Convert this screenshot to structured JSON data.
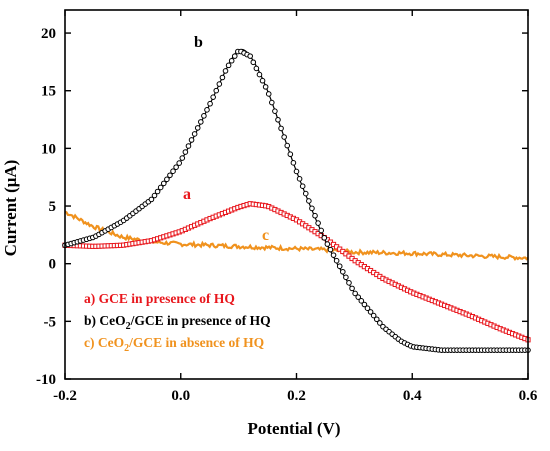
{
  "chart_data": {
    "type": "scatter",
    "xlabel": "Potential (V)",
    "ylabel": "Current (μA)",
    "xlim": [
      -0.2,
      0.6
    ],
    "ylim": [
      -10,
      22
    ],
    "xticks": [
      "-0.2",
      "0.0",
      "0.2",
      "0.4",
      "0.6"
    ],
    "yticks": [
      "-10",
      "-5",
      "0",
      "5",
      "10",
      "15",
      "20"
    ],
    "grid": false,
    "legend_position": "bottom-left",
    "series": [
      {
        "key": "a",
        "label": "a",
        "legend": "a) GCE in presence of HQ",
        "color": "#e8161c",
        "marker": "open-square",
        "x": [
          -0.2,
          -0.15,
          -0.1,
          -0.05,
          0.0,
          0.05,
          0.1,
          0.12,
          0.15,
          0.2,
          0.25,
          0.3,
          0.35,
          0.4,
          0.45,
          0.5,
          0.55,
          0.6
        ],
        "y": [
          1.6,
          1.5,
          1.6,
          2.0,
          2.8,
          3.9,
          4.9,
          5.2,
          5.0,
          3.8,
          2.2,
          0.3,
          -1.3,
          -2.5,
          -3.5,
          -4.5,
          -5.6,
          -6.6
        ]
      },
      {
        "key": "b",
        "label": "b",
        "legend_parts": [
          "b) CeO",
          "2",
          "/GCE in presence of HQ"
        ],
        "color": "#000000",
        "marker": "open-circle",
        "x": [
          -0.2,
          -0.15,
          -0.1,
          -0.05,
          0.0,
          0.05,
          0.08,
          0.1,
          0.12,
          0.15,
          0.2,
          0.25,
          0.3,
          0.35,
          0.38,
          0.4,
          0.45,
          0.5,
          0.55,
          0.6
        ],
        "y": [
          1.6,
          2.3,
          3.7,
          5.6,
          8.9,
          13.8,
          17.0,
          18.5,
          18.0,
          15.0,
          8.0,
          2.0,
          -2.5,
          -5.5,
          -6.7,
          -7.2,
          -7.5,
          -7.5,
          -7.5,
          -7.5
        ]
      },
      {
        "key": "c",
        "label": "c",
        "legend_parts": [
          "c) CeO",
          "2",
          "/GCE in absence of HQ"
        ],
        "color": "#f0921e",
        "marker": "noisy-line",
        "x": [
          -0.2,
          -0.15,
          -0.1,
          -0.05,
          0.0,
          0.05,
          0.1,
          0.15,
          0.2,
          0.25,
          0.3,
          0.35,
          0.4,
          0.45,
          0.5,
          0.55,
          0.6
        ],
        "y": [
          4.5,
          3.2,
          2.3,
          1.9,
          1.7,
          1.6,
          1.5,
          1.4,
          1.3,
          1.2,
          1.0,
          0.95,
          0.9,
          0.8,
          0.7,
          0.6,
          0.5
        ]
      }
    ]
  }
}
